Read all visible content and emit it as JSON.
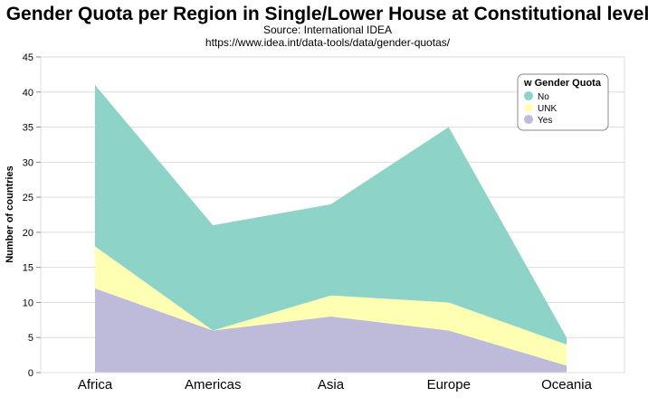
{
  "chart_data": {
    "type": "area",
    "stacked": true,
    "title": "Gender Quota per Region in Single/Lower House at Constitutional level",
    "subtitle": [
      "Source: International IDEA",
      "https://www.idea.int/data-tools/data/gender-quotas/"
    ],
    "xlabel": "",
    "ylabel": "Number of countries",
    "ylim": [
      0,
      45
    ],
    "yticks": [
      0,
      5,
      10,
      15,
      20,
      25,
      30,
      35,
      40,
      45
    ],
    "categories": [
      "Africa",
      "Americas",
      "Asia",
      "Europe",
      "Oceania"
    ],
    "series": [
      {
        "name": "Yes",
        "color": "#bebada",
        "values": [
          12,
          6,
          8,
          6,
          1
        ]
      },
      {
        "name": "UNK",
        "color": "#ffffb3",
        "values": [
          6,
          0,
          3,
          4,
          3
        ]
      },
      {
        "name": "No",
        "color": "#8dd3c7",
        "values": [
          23,
          15,
          13,
          25,
          1
        ]
      }
    ],
    "legend": {
      "title": "w Gender Quota",
      "placement": "top-right",
      "entries": [
        "No",
        "UNK",
        "Yes"
      ]
    },
    "grid": true
  }
}
